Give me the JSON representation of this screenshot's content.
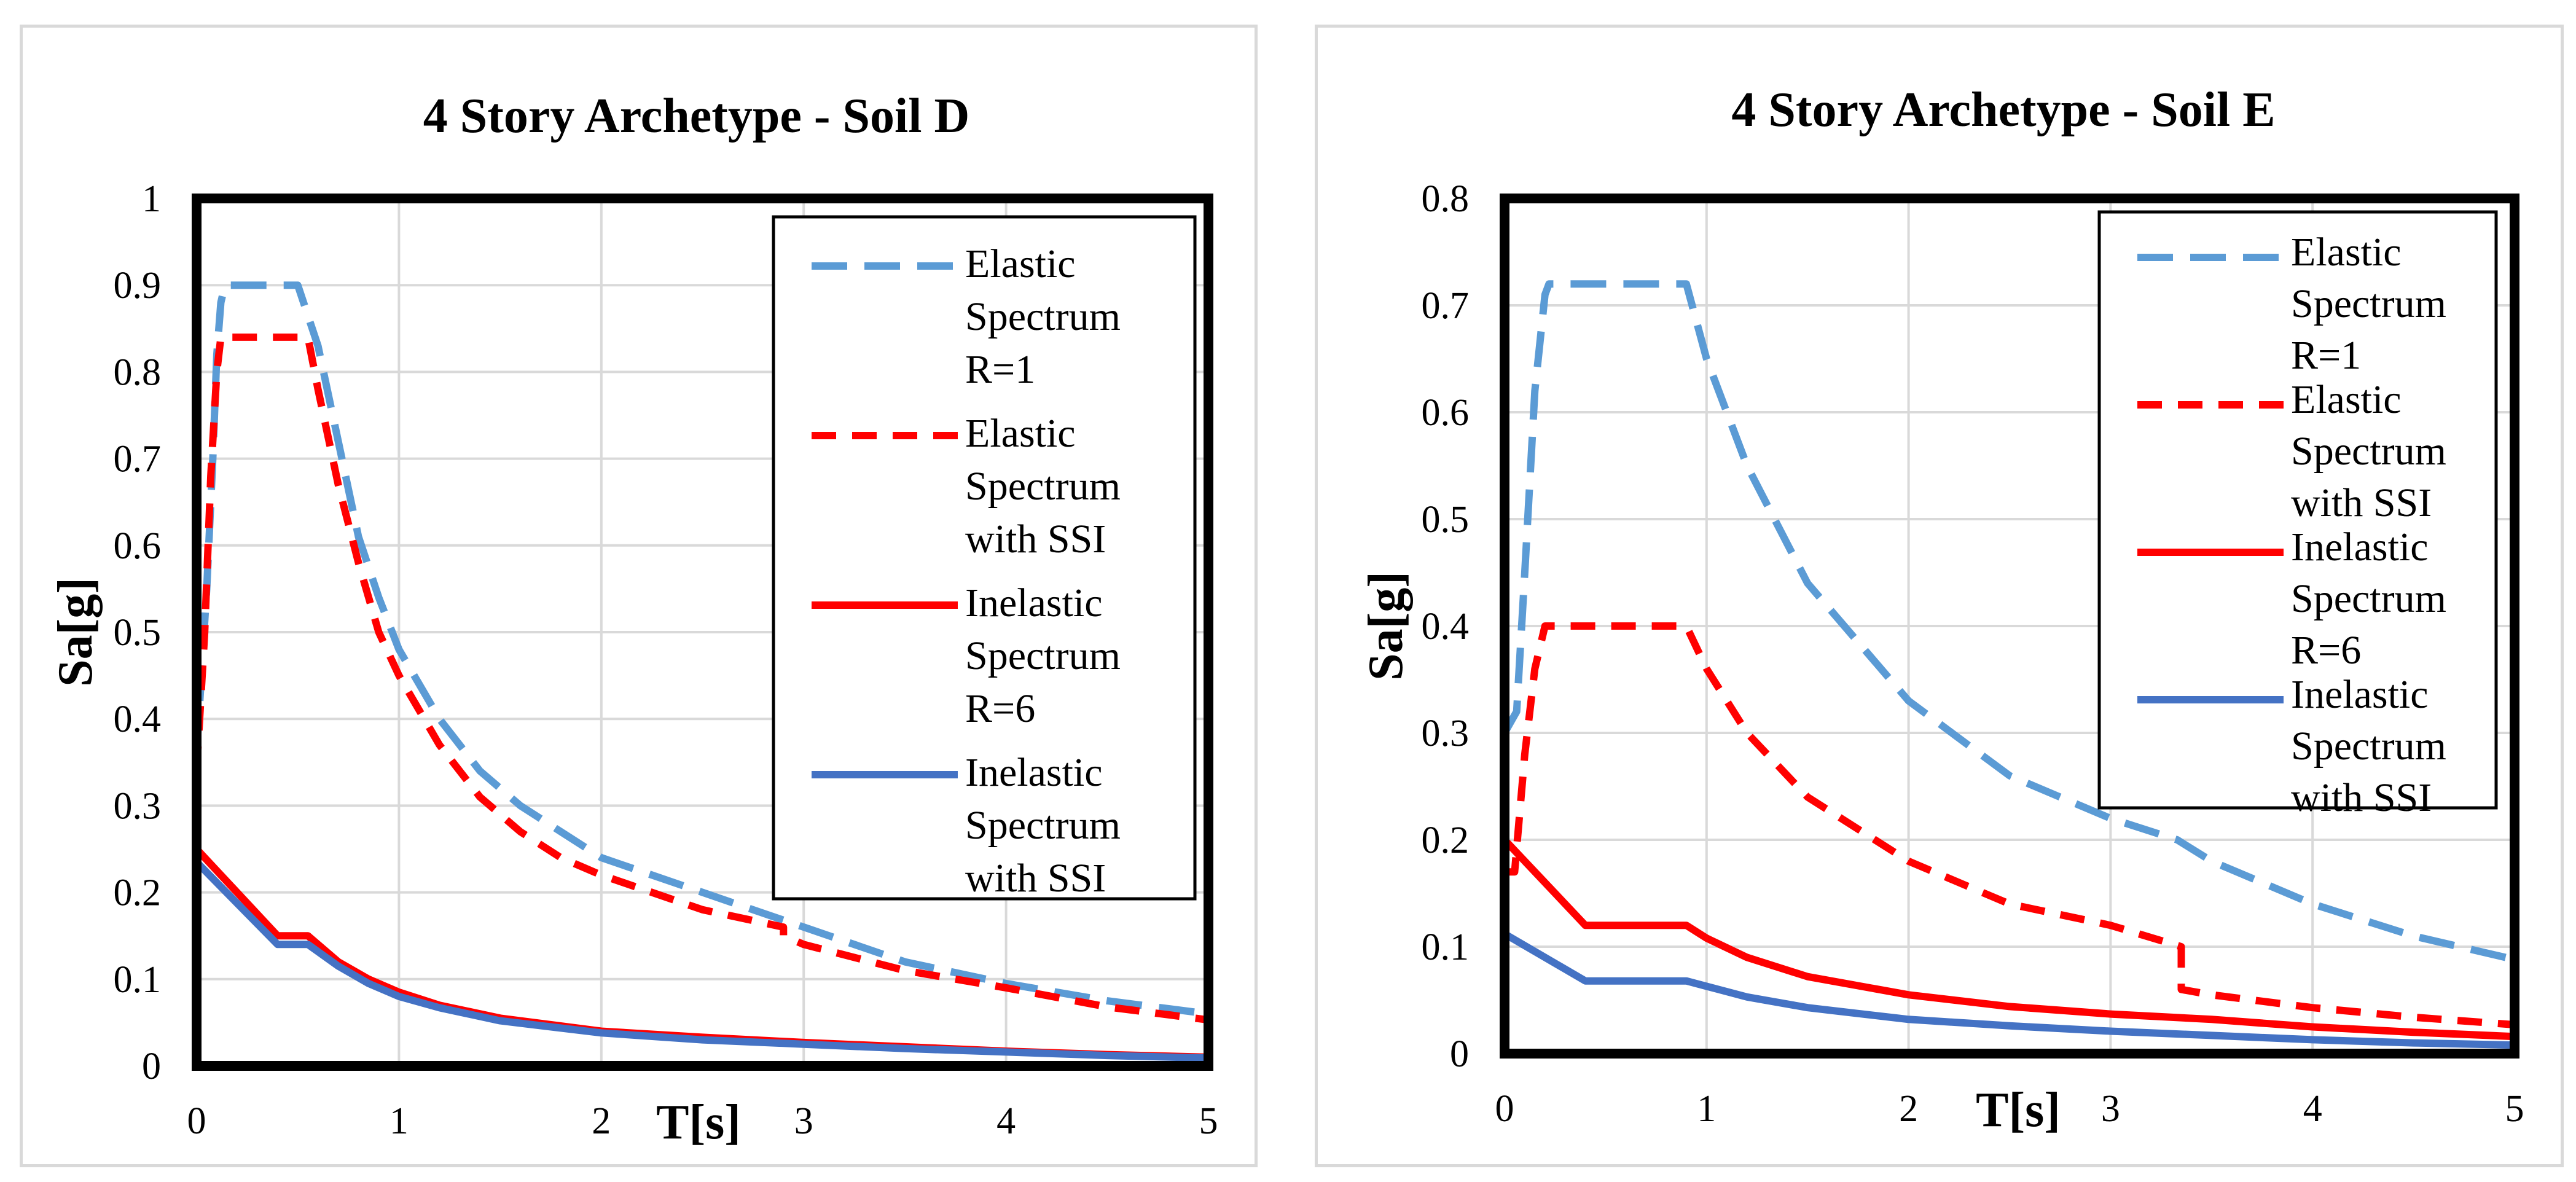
{
  "chart_data": [
    {
      "type": "line",
      "title": "4 Story Archetype - Soil D",
      "xlabel": "T[s]",
      "ylabel": "Sa[g]",
      "xlim": [
        0,
        5
      ],
      "ylim": [
        0,
        1
      ],
      "xticks": [
        "0",
        "1",
        "2",
        "3",
        "4",
        "5"
      ],
      "yticks": [
        "0",
        "0.1",
        "0.2",
        "0.3",
        "0.4",
        "0.5",
        "0.6",
        "0.7",
        "0.8",
        "0.9",
        "1"
      ],
      "grid": true,
      "legend_position": "top-right",
      "series": [
        {
          "name": "Elastic Spectrum R=1",
          "legend_lines": [
            "Elastic",
            "Spectrum",
            "R=1"
          ],
          "color": "#5b9bd5",
          "style": "dashed",
          "x": [
            0,
            0.05,
            0.08,
            0.1,
            0.12,
            0.14,
            0.5,
            0.6,
            0.7,
            0.8,
            0.9,
            1.0,
            1.2,
            1.4,
            1.6,
            1.8,
            2.0,
            2.5,
            3.0,
            3.5,
            4.0,
            4.5,
            5.0
          ],
          "y": [
            0.36,
            0.55,
            0.7,
            0.82,
            0.88,
            0.9,
            0.9,
            0.83,
            0.72,
            0.61,
            0.54,
            0.48,
            0.4,
            0.34,
            0.3,
            0.27,
            0.24,
            0.2,
            0.16,
            0.12,
            0.095,
            0.075,
            0.06
          ]
        },
        {
          "name": "Elastic Spectrum with SSI",
          "legend_lines": [
            "Elastic",
            "Spectrum",
            "with SSI"
          ],
          "color": "#ff0000",
          "style": "dashed",
          "x": [
            0,
            0.04,
            0.07,
            0.1,
            0.12,
            0.55,
            0.6,
            0.7,
            0.8,
            0.9,
            1.0,
            1.2,
            1.4,
            1.6,
            1.8,
            2.0,
            2.5,
            2.9,
            2.9,
            3.0,
            3.5,
            4.0,
            4.5,
            5.0
          ],
          "y": [
            0.34,
            0.5,
            0.68,
            0.8,
            0.84,
            0.84,
            0.78,
            0.67,
            0.58,
            0.5,
            0.45,
            0.37,
            0.31,
            0.27,
            0.24,
            0.22,
            0.18,
            0.16,
            0.15,
            0.14,
            0.11,
            0.09,
            0.068,
            0.053
          ]
        },
        {
          "name": "Inelastic Spectrum R=6",
          "legend_lines": [
            "Inelastic",
            "Spectrum",
            "R=6"
          ],
          "color": "#ff0000",
          "style": "solid",
          "x": [
            0,
            0.4,
            0.55,
            0.7,
            0.85,
            1.0,
            1.2,
            1.5,
            2.0,
            2.5,
            3.0,
            3.5,
            4.0,
            4.5,
            5.0
          ],
          "y": [
            0.25,
            0.15,
            0.15,
            0.12,
            0.1,
            0.085,
            0.07,
            0.055,
            0.04,
            0.033,
            0.027,
            0.022,
            0.017,
            0.013,
            0.01
          ]
        },
        {
          "name": "Inelastic Spectrum with SSI",
          "legend_lines": [
            "Inelastic",
            "Spectrum",
            "with SSI"
          ],
          "color": "#4472c4",
          "style": "solid",
          "x": [
            0,
            0.4,
            0.55,
            0.7,
            0.85,
            1.0,
            1.2,
            1.5,
            2.0,
            2.5,
            3.0,
            3.5,
            4.0,
            4.5,
            5.0
          ],
          "y": [
            0.235,
            0.14,
            0.14,
            0.115,
            0.095,
            0.08,
            0.067,
            0.052,
            0.038,
            0.03,
            0.025,
            0.02,
            0.016,
            0.012,
            0.009
          ]
        }
      ]
    },
    {
      "type": "line",
      "title": "4 Story Archetype - Soil E",
      "xlabel": "T[s]",
      "ylabel": "Sa[g]",
      "xlim": [
        0,
        5
      ],
      "ylim": [
        0,
        0.8
      ],
      "xticks": [
        "0",
        "1",
        "2",
        "3",
        "4",
        "5"
      ],
      "yticks": [
        "0",
        "0.1",
        "0.2",
        "0.3",
        "0.4",
        "0.5",
        "0.6",
        "0.7",
        "0.8"
      ],
      "grid": true,
      "legend_position": "top-right",
      "series": [
        {
          "name": "Elastic Spectrum R=1",
          "legend_lines": [
            "Elastic",
            "Spectrum",
            "R=1"
          ],
          "color": "#5b9bd5",
          "style": "dashed",
          "x": [
            0,
            0.06,
            0.1,
            0.15,
            0.2,
            0.22,
            0.9,
            1.0,
            1.2,
            1.5,
            2.0,
            2.5,
            3.0,
            3.33,
            3.5,
            4.0,
            4.5,
            5.0
          ],
          "y": [
            0.3,
            0.32,
            0.45,
            0.62,
            0.71,
            0.72,
            0.72,
            0.65,
            0.55,
            0.44,
            0.33,
            0.26,
            0.22,
            0.2,
            0.18,
            0.14,
            0.11,
            0.088
          ]
        },
        {
          "name": "Elastic Spectrum with SSI",
          "legend_lines": [
            "Elastic",
            "Spectrum",
            "with SSI"
          ],
          "color": "#ff0000",
          "style": "dashed",
          "x": [
            0,
            0.05,
            0.1,
            0.15,
            0.2,
            0.22,
            0.9,
            1.0,
            1.2,
            1.5,
            2.0,
            2.5,
            3.0,
            3.35,
            3.35,
            3.5,
            4.0,
            4.5,
            5.0
          ],
          "y": [
            0.17,
            0.17,
            0.28,
            0.36,
            0.4,
            0.4,
            0.4,
            0.36,
            0.3,
            0.24,
            0.18,
            0.14,
            0.12,
            0.1,
            0.06,
            0.055,
            0.043,
            0.034,
            0.027
          ]
        },
        {
          "name": "Inelastic Spectrum R=6",
          "legend_lines": [
            "Inelastic",
            "Spectrum",
            "R=6"
          ],
          "color": "#ff0000",
          "style": "solid",
          "x": [
            0,
            0.4,
            0.9,
            1.0,
            1.2,
            1.5,
            2.0,
            2.5,
            3.0,
            3.5,
            4.0,
            4.5,
            5.0
          ],
          "y": [
            0.2,
            0.12,
            0.12,
            0.108,
            0.09,
            0.072,
            0.055,
            0.044,
            0.037,
            0.032,
            0.025,
            0.02,
            0.016
          ]
        },
        {
          "name": "Inelastic Spectrum with SSI",
          "legend_lines": [
            "Inelastic",
            "Spectrum",
            "with SSI"
          ],
          "color": "#4472c4",
          "style": "solid",
          "x": [
            0,
            0.4,
            0.9,
            1.0,
            1.2,
            1.5,
            2.0,
            2.5,
            3.0,
            3.5,
            4.0,
            4.5,
            5.0
          ],
          "y": [
            0.112,
            0.068,
            0.068,
            0.063,
            0.053,
            0.043,
            0.032,
            0.026,
            0.021,
            0.017,
            0.013,
            0.01,
            0.008
          ]
        }
      ]
    }
  ]
}
